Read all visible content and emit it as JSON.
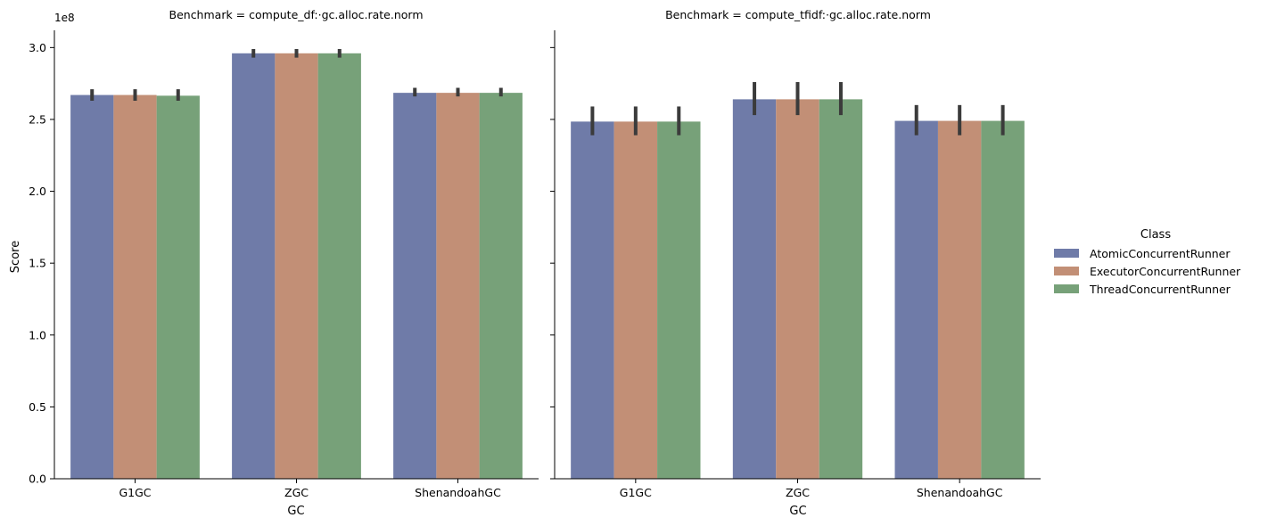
{
  "chart_data": {
    "type": "bar",
    "y_offset_label": "1e8",
    "ylabel": "Score",
    "xlabel": "GC",
    "ylim": [
      0,
      3.12
    ],
    "y_ticks": [
      0.0,
      0.5,
      1.0,
      1.5,
      2.0,
      2.5,
      3.0
    ],
    "y_tick_labels": [
      "0.0",
      "0.5",
      "1.0",
      "1.5",
      "2.0",
      "2.5",
      "3.0"
    ],
    "categories": [
      "G1GC",
      "ZGC",
      "ShenandoahGC"
    ],
    "legend": {
      "title": "Class",
      "placement": "right",
      "entries": [
        "AtomicConcurrentRunner",
        "ExecutorConcurrentRunner",
        "ThreadConcurrentRunner"
      ]
    },
    "colors": [
      "#6f7ba8",
      "#c28f76",
      "#77a179"
    ],
    "error_bar_color": "#3b3b3b",
    "panels": [
      {
        "title": "Benchmark = compute_df:·gc.alloc.rate.norm",
        "series": [
          {
            "name": "AtomicConcurrentRunner",
            "values": [
              2.67,
              2.96,
              2.685
            ],
            "err_low": [
              2.63,
              2.93,
              2.66
            ],
            "err_high": [
              2.71,
              2.99,
              2.72
            ]
          },
          {
            "name": "ExecutorConcurrentRunner",
            "values": [
              2.67,
              2.96,
              2.685
            ],
            "err_low": [
              2.63,
              2.93,
              2.66
            ],
            "err_high": [
              2.71,
              2.99,
              2.72
            ]
          },
          {
            "name": "ThreadConcurrentRunner",
            "values": [
              2.665,
              2.96,
              2.685
            ],
            "err_low": [
              2.63,
              2.93,
              2.66
            ],
            "err_high": [
              2.71,
              2.99,
              2.72
            ]
          }
        ]
      },
      {
        "title": "Benchmark = compute_tfidf:·gc.alloc.rate.norm",
        "series": [
          {
            "name": "AtomicConcurrentRunner",
            "values": [
              2.485,
              2.64,
              2.49
            ],
            "err_low": [
              2.39,
              2.53,
              2.39
            ],
            "err_high": [
              2.59,
              2.76,
              2.6
            ]
          },
          {
            "name": "ExecutorConcurrentRunner",
            "values": [
              2.485,
              2.64,
              2.49
            ],
            "err_low": [
              2.39,
              2.53,
              2.39
            ],
            "err_high": [
              2.59,
              2.76,
              2.6
            ]
          },
          {
            "name": "ThreadConcurrentRunner",
            "values": [
              2.485,
              2.64,
              2.49
            ],
            "err_low": [
              2.39,
              2.53,
              2.39
            ],
            "err_high": [
              2.59,
              2.76,
              2.6
            ]
          }
        ]
      }
    ]
  }
}
